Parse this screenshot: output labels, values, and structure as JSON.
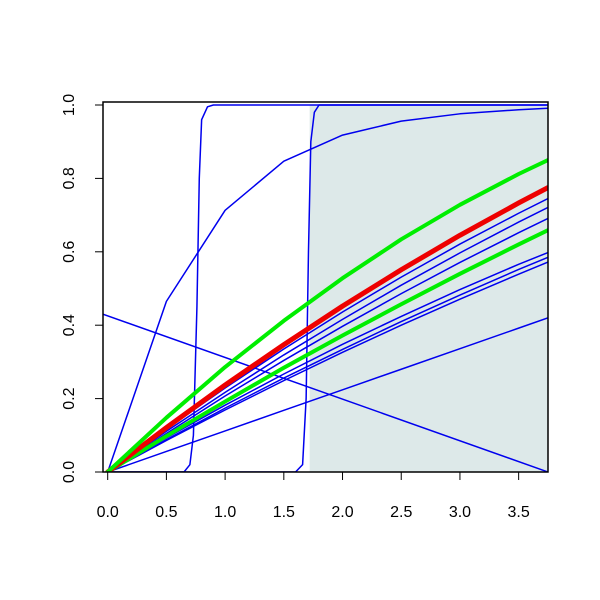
{
  "chart_data": {
    "type": "line",
    "xlim": [
      -0.04,
      3.75
    ],
    "ylim": [
      0,
      1
    ],
    "xticks": [
      {
        "value": 0,
        "label": "0.0"
      },
      0.5,
      {
        "value": 1,
        "label": "1.0"
      },
      1.5,
      {
        "value": 2,
        "label": "2.0"
      },
      2.5,
      {
        "value": 3,
        "label": "3.0"
      },
      3.5
    ],
    "yticks": [
      {
        "value": 0,
        "label": "0.0"
      },
      0.2,
      0.4,
      0.6,
      0.8,
      {
        "value": 1,
        "label": "1.0"
      }
    ],
    "shaded_region": {
      "x": [
        1.72,
        3.75
      ],
      "y": [
        0,
        1
      ],
      "color": "#dde9e9"
    },
    "series": [
      {
        "color": "#0000ee",
        "linewidth": 1.5,
        "x": [
          0,
          0.5,
          1,
          1.5,
          2,
          2.5,
          3,
          3.5,
          3.75
        ],
        "values": [
          0,
          0.117,
          0.229,
          0.335,
          0.436,
          0.531,
          0.621,
          0.705,
          0.745
        ]
      },
      {
        "color": "#0000ee",
        "linewidth": 1.5,
        "x": [
          0,
          0.5,
          1,
          1.5,
          2,
          2.5,
          3,
          3.5,
          3.75
        ],
        "values": [
          0,
          0.111,
          0.217,
          0.319,
          0.416,
          0.509,
          0.597,
          0.681,
          0.721
        ]
      },
      {
        "color": "#0000ee",
        "linewidth": 1.5,
        "x": [
          0,
          0.5,
          1,
          1.5,
          2,
          2.5,
          3,
          3.5,
          3.75
        ],
        "values": [
          0,
          0.105,
          0.207,
          0.304,
          0.397,
          0.486,
          0.571,
          0.652,
          0.691
        ]
      },
      {
        "color": "#0000ee",
        "linewidth": 1.5,
        "x": [
          0,
          0.5,
          1,
          1.5,
          2,
          2.5,
          3,
          3.5,
          3.75
        ],
        "values": [
          0,
          0.093,
          0.182,
          0.267,
          0.348,
          0.424,
          0.497,
          0.566,
          0.598
        ]
      },
      {
        "color": "#0000ee",
        "linewidth": 1.5,
        "x": [
          0,
          0.5,
          1,
          1.5,
          2,
          2.5,
          3,
          3.5,
          3.75
        ],
        "values": [
          0,
          0.088,
          0.174,
          0.256,
          0.334,
          0.41,
          0.482,
          0.552,
          0.585
        ]
      },
      {
        "color": "#0000ee",
        "linewidth": 1.5,
        "x": [
          0,
          0.5,
          1,
          1.5,
          2,
          2.5,
          3,
          3.5,
          3.75
        ],
        "values": [
          0,
          0.086,
          0.169,
          0.249,
          0.326,
          0.4,
          0.471,
          0.539,
          0.572
        ]
      },
      {
        "color": "#0000ee",
        "linewidth": 1.5,
        "x": [
          0,
          0.5,
          1,
          1.5,
          2,
          2.5,
          3,
          3.5,
          3.75
        ],
        "values": [
          0,
          0.056,
          0.112,
          0.168,
          0.224,
          0.28,
          0.336,
          0.392,
          0.42
        ]
      },
      {
        "color": "#0000ee",
        "linewidth": 1.5,
        "x": [
          -0.04,
          3.75
        ],
        "values": [
          0.43,
          0
        ]
      },
      {
        "color": "#0000ee",
        "linewidth": 1.5,
        "x": [
          0,
          0.5,
          1,
          1.5,
          2,
          2.5,
          3,
          3.5,
          3.75
        ],
        "values": [
          0,
          0.465,
          0.713,
          0.847,
          0.918,
          0.956,
          0.976,
          0.987,
          0.991
        ]
      },
      {
        "color": "#0000ee",
        "linewidth": 1.5,
        "x": [
          0,
          0.65,
          0.7,
          0.73,
          0.76,
          0.78,
          0.8,
          0.85,
          0.9,
          3.75
        ],
        "values": [
          0,
          0,
          0.02,
          0.1,
          0.45,
          0.8,
          0.96,
          0.995,
          1,
          1
        ]
      },
      {
        "color": "#0000ee",
        "linewidth": 1.5,
        "x": [
          0,
          1.6,
          1.66,
          1.69,
          1.71,
          1.73,
          1.76,
          1.8,
          3.75
        ],
        "values": [
          0,
          0,
          0.02,
          0.2,
          0.6,
          0.9,
          0.98,
          1,
          1
        ]
      },
      {
        "color": "#00ee00",
        "linewidth": 4,
        "x": [
          0,
          0.5,
          1,
          1.5,
          2,
          2.5,
          3,
          3.5,
          3.75
        ],
        "values": [
          0,
          0.098,
          0.192,
          0.284,
          0.372,
          0.457,
          0.54,
          0.62,
          0.659
        ]
      },
      {
        "color": "#ee0000",
        "linewidth": 5,
        "x": [
          0,
          0.5,
          1,
          1.5,
          2,
          2.5,
          3,
          3.5,
          3.75
        ],
        "values": [
          0,
          0.121,
          0.237,
          0.347,
          0.452,
          0.551,
          0.645,
          0.733,
          0.775
        ]
      },
      {
        "color": "#00ee00",
        "linewidth": 4,
        "x": [
          0,
          0.5,
          1,
          1.5,
          2,
          2.5,
          3,
          3.5,
          3.75
        ],
        "values": [
          0,
          0.148,
          0.286,
          0.412,
          0.528,
          0.634,
          0.728,
          0.812,
          0.85
        ]
      }
    ]
  }
}
